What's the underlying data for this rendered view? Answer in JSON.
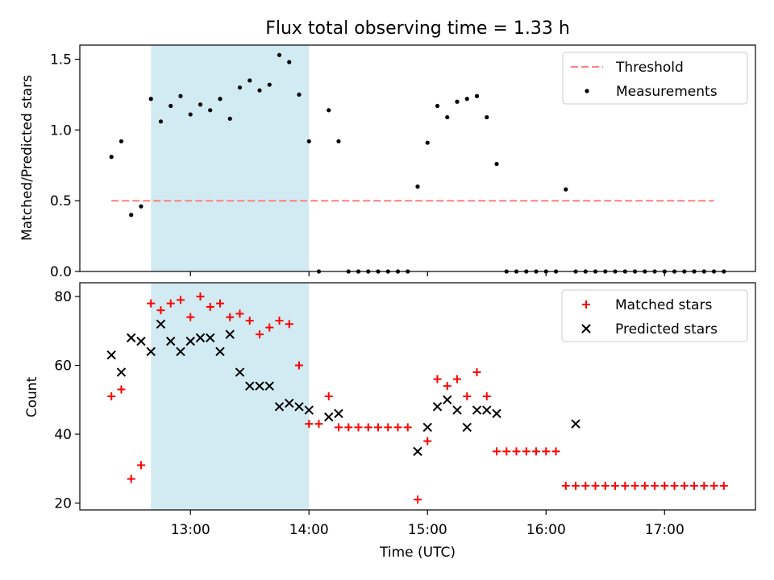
{
  "chart_data": [
    {
      "type": "scatter",
      "title": "Flux total observing time = 1.33 h",
      "xlabel": "",
      "ylabel": "Matched/Predicted stars",
      "xlim": [
        "12:04",
        "17:46"
      ],
      "ylim": [
        0,
        1.6
      ],
      "yticks": [
        0.0,
        0.5,
        1.0,
        1.5
      ],
      "yticklabels": [
        "0.0",
        "0.5",
        "1.0",
        "1.5"
      ],
      "highlight_span": {
        "x_start": "12:40",
        "x_end": "14:00",
        "color": "#add8e6"
      },
      "threshold": {
        "name": "Threshold",
        "value": 0.5,
        "x_start": "12:20",
        "x_end": "17:25",
        "color": "#ff7f7f"
      },
      "series": [
        {
          "name": "Measurements",
          "color": "#000000",
          "marker": "dot",
          "x": [
            "12:20",
            "12:25",
            "12:30",
            "12:35",
            "12:40",
            "12:45",
            "12:50",
            "12:55",
            "13:00",
            "13:05",
            "13:10",
            "13:15",
            "13:20",
            "13:25",
            "13:30",
            "13:35",
            "13:40",
            "13:45",
            "13:50",
            "13:55",
            "14:00",
            "14:05",
            "14:10",
            "14:15",
            "14:20",
            "14:25",
            "14:30",
            "14:35",
            "14:40",
            "14:45",
            "14:50",
            "14:55",
            "15:00",
            "15:05",
            "15:10",
            "15:15",
            "15:20",
            "15:25",
            "15:30",
            "15:35",
            "15:40",
            "15:45",
            "15:50",
            "15:55",
            "16:00",
            "16:05",
            "16:10",
            "16:15",
            "16:20",
            "16:25",
            "16:30",
            "16:35",
            "16:40",
            "16:45",
            "16:50",
            "16:55",
            "17:00",
            "17:05",
            "17:10",
            "17:15",
            "17:20",
            "17:25",
            "17:30"
          ],
          "y": [
            0.81,
            0.92,
            0.4,
            0.46,
            1.22,
            1.06,
            1.17,
            1.24,
            1.11,
            1.18,
            1.14,
            1.22,
            1.08,
            1.3,
            1.35,
            1.28,
            1.32,
            1.53,
            1.48,
            1.25,
            0.92,
            0.0,
            1.14,
            0.92,
            0.0,
            0.0,
            0.0,
            0.0,
            0.0,
            0.0,
            0.0,
            0.6,
            0.91,
            1.17,
            1.09,
            1.2,
            1.22,
            1.24,
            1.09,
            0.76,
            0.0,
            0.0,
            0.0,
            0.0,
            0.0,
            0.0,
            0.58,
            0.0,
            0.0,
            0.0,
            0.0,
            0.0,
            0.0,
            0.0,
            0.0,
            0.0,
            0.0,
            0.0,
            0.0,
            0.0,
            0.0,
            0.0,
            0.0
          ]
        }
      ],
      "legend": {
        "position": "top-right",
        "entries": [
          "Threshold",
          "Measurements"
        ]
      }
    },
    {
      "type": "scatter",
      "title": "",
      "xlabel": "Time (UTC)",
      "ylabel": "Count",
      "xlim": [
        "12:04",
        "17:46"
      ],
      "xticks": [
        "13:00",
        "14:00",
        "15:00",
        "16:00",
        "17:00"
      ],
      "ylim": [
        18,
        84
      ],
      "yticks": [
        20,
        40,
        60,
        80
      ],
      "highlight_span": {
        "x_start": "12:40",
        "x_end": "14:00",
        "color": "#add8e6"
      },
      "series": [
        {
          "name": "Matched stars",
          "color": "#ff0000",
          "marker": "plus",
          "x": [
            "12:20",
            "12:25",
            "12:30",
            "12:35",
            "12:40",
            "12:45",
            "12:50",
            "12:55",
            "13:00",
            "13:05",
            "13:10",
            "13:15",
            "13:20",
            "13:25",
            "13:30",
            "13:35",
            "13:40",
            "13:45",
            "13:50",
            "13:55",
            "14:00",
            "14:05",
            "14:10",
            "14:15",
            "14:20",
            "14:25",
            "14:30",
            "14:35",
            "14:40",
            "14:45",
            "14:50",
            "14:55",
            "15:00",
            "15:05",
            "15:10",
            "15:15",
            "15:20",
            "15:25",
            "15:30",
            "15:35",
            "15:40",
            "15:45",
            "15:50",
            "15:55",
            "16:00",
            "16:05",
            "16:10",
            "16:15",
            "16:20",
            "16:25",
            "16:30",
            "16:35",
            "16:40",
            "16:45",
            "16:50",
            "16:55",
            "17:00",
            "17:05",
            "17:10",
            "17:15",
            "17:20",
            "17:25",
            "17:30"
          ],
          "y": [
            51,
            53,
            27,
            31,
            78,
            76,
            78,
            79,
            74,
            80,
            77,
            78,
            74,
            75,
            73,
            69,
            71,
            73,
            72,
            60,
            43,
            43,
            51,
            42,
            42,
            42,
            42,
            42,
            42,
            42,
            42,
            21,
            38,
            56,
            54,
            56,
            51,
            58,
            51,
            35,
            35,
            35,
            35,
            35,
            35,
            35,
            25,
            25,
            25,
            25,
            25,
            25,
            25,
            25,
            25,
            25,
            25,
            25,
            25,
            25,
            25,
            25,
            25
          ]
        },
        {
          "name": "Predicted stars",
          "color": "#000000",
          "marker": "x",
          "x": [
            "12:20",
            "12:25",
            "12:30",
            "12:35",
            "12:40",
            "12:45",
            "12:50",
            "12:55",
            "13:00",
            "13:05",
            "13:10",
            "13:15",
            "13:20",
            "13:25",
            "13:30",
            "13:35",
            "13:40",
            "13:45",
            "13:50",
            "13:55",
            "14:00",
            "14:10",
            "14:15",
            "14:55",
            "15:00",
            "15:05",
            "15:10",
            "15:15",
            "15:20",
            "15:25",
            "15:30",
            "15:35",
            "16:15"
          ],
          "y": [
            63,
            58,
            68,
            67,
            64,
            72,
            67,
            64,
            67,
            68,
            68,
            64,
            69,
            58,
            54,
            54,
            54,
            48,
            49,
            48,
            47,
            45,
            46,
            35,
            42,
            48,
            50,
            47,
            42,
            47,
            47,
            46,
            43
          ]
        }
      ],
      "legend": {
        "position": "top-right",
        "entries": [
          "Matched stars",
          "Predicted stars"
        ]
      }
    }
  ]
}
